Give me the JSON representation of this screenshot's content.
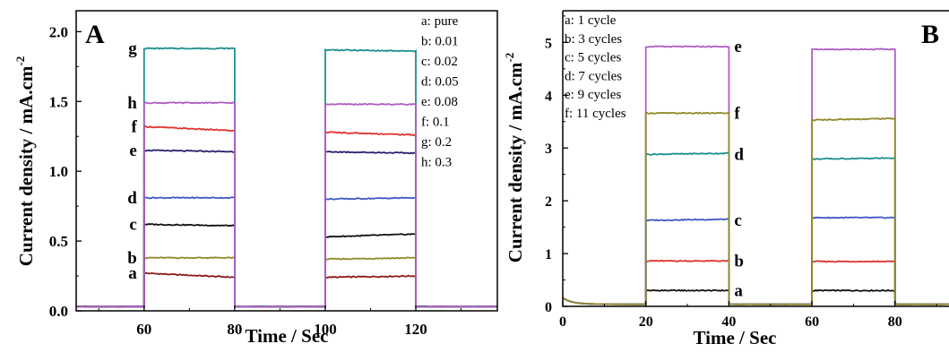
{
  "chart_data": [
    {
      "type": "line",
      "panel_label": "A",
      "xlabel": "Time / Sec",
      "ylabel_main": "Current density / mA.cm",
      "ylabel_sup": "-2",
      "xlim": [
        45,
        138
      ],
      "ylim": [
        0,
        2.15
      ],
      "xticks": [
        60,
        80,
        100,
        120
      ],
      "yticks": [
        0.0,
        0.5,
        1.0,
        1.5,
        2.0
      ],
      "ytick_labels": [
        "0.0",
        "0.5",
        "1.0",
        "1.5",
        "2.0"
      ],
      "pulses": [
        [
          60,
          80
        ],
        [
          100,
          120
        ]
      ],
      "dark_current": 0.03,
      "series": [
        {
          "name": "a",
          "legend": "a: pure",
          "color": "#8b1a1a",
          "on1": [
            0.27,
            0.24
          ],
          "on2": [
            0.24,
            0.25
          ]
        },
        {
          "name": "b",
          "legend": "b: 0.01",
          "color": "#8f8a2a",
          "on1": [
            0.38,
            0.38
          ],
          "on2": [
            0.37,
            0.38
          ]
        },
        {
          "name": "c",
          "legend": "c: 0.02",
          "color": "#111111",
          "on1": [
            0.62,
            0.61
          ],
          "on2": [
            0.53,
            0.55
          ]
        },
        {
          "name": "d",
          "legend": "d: 0.05",
          "color": "#3f58c8",
          "on1": [
            0.81,
            0.81
          ],
          "on2": [
            0.8,
            0.81
          ]
        },
        {
          "name": "e",
          "legend": "e: 0.08",
          "color": "#26226e",
          "on1": [
            1.15,
            1.14
          ],
          "on2": [
            1.14,
            1.13
          ]
        },
        {
          "name": "f",
          "legend": "f:  0.1",
          "color": "#e0332a",
          "on1": [
            1.32,
            1.29
          ],
          "on2": [
            1.28,
            1.26
          ]
        },
        {
          "name": "g",
          "legend": "g: 0.2",
          "color": "#1e8f8f",
          "on1": [
            1.88,
            1.88
          ],
          "on2": [
            1.87,
            1.86
          ]
        },
        {
          "name": "h",
          "legend": "h: 0.3",
          "color": "#b05cc4",
          "on1": [
            1.49,
            1.49
          ],
          "on2": [
            1.48,
            1.48
          ]
        }
      ]
    },
    {
      "type": "line",
      "panel_label": "B",
      "xlabel": "Time / Sec",
      "ylabel_main": "Current density / mA.cm",
      "ylabel_sup": "-2",
      "xlim": [
        0,
        93
      ],
      "ylim": [
        0,
        5.6
      ],
      "xticks": [
        0,
        20,
        40,
        60,
        80
      ],
      "yticks": [
        0,
        1,
        2,
        3,
        4,
        5
      ],
      "ytick_labels": [
        "0",
        "1",
        "2",
        "3",
        "4",
        "5"
      ],
      "pulses": [
        [
          20,
          40
        ],
        [
          60,
          80
        ]
      ],
      "dark_current": 0.04,
      "series": [
        {
          "name": "a",
          "legend": "a: 1 cycle",
          "color": "#111111",
          "on1": [
            0.3,
            0.3
          ],
          "on2": [
            0.3,
            0.3
          ]
        },
        {
          "name": "b",
          "legend": "b: 3 cycles",
          "color": "#e0332a",
          "on1": [
            0.86,
            0.86
          ],
          "on2": [
            0.85,
            0.85
          ]
        },
        {
          "name": "c",
          "legend": "c: 5 cycles",
          "color": "#3f58c8",
          "on1": [
            1.63,
            1.65
          ],
          "on2": [
            1.68,
            1.68
          ]
        },
        {
          "name": "d",
          "legend": "d: 7 cycles",
          "color": "#1e8f8f",
          "on1": [
            2.88,
            2.9
          ],
          "on2": [
            2.79,
            2.81
          ]
        },
        {
          "name": "e",
          "legend": "e: 9 cycles",
          "color": "#b05cc4",
          "on1": [
            4.92,
            4.92
          ],
          "on2": [
            4.87,
            4.87
          ]
        },
        {
          "name": "f",
          "legend": "f: 11 cycles",
          "color": "#8f8a2a",
          "on1": [
            3.66,
            3.66
          ],
          "on2": [
            3.53,
            3.56
          ]
        }
      ]
    }
  ]
}
